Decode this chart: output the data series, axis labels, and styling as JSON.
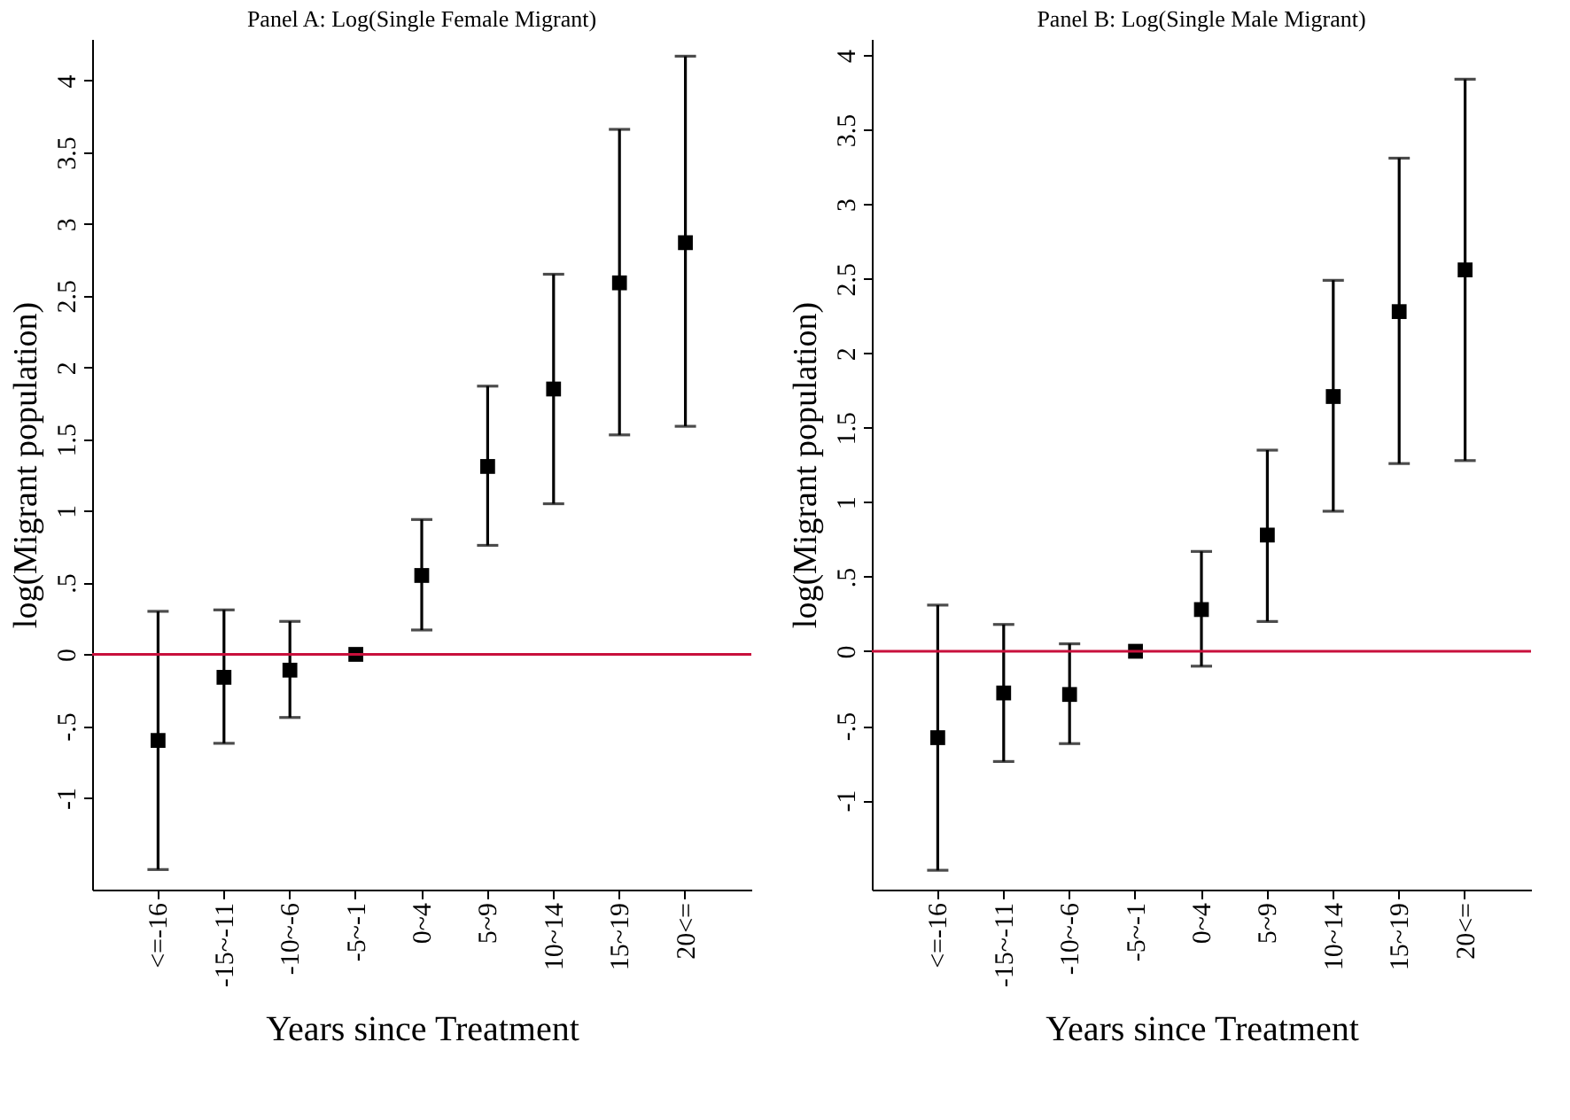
{
  "chart_data": [
    {
      "type": "scatter",
      "title": "Panel A: Log(Single Female Migrant)",
      "xlabel": "Years since Treatment",
      "ylabel": "log(Migrant population)",
      "categories": [
        "<=-16",
        "-15~-11",
        "-10~-6",
        "-5~-1",
        "0~4",
        "5~9",
        "10~14",
        "15~19",
        "20<="
      ],
      "series": [
        {
          "color": "#000000",
          "values": [
            -0.6,
            -0.16,
            -0.11,
            0,
            0.55,
            1.31,
            1.85,
            2.59,
            2.87
          ],
          "errors": [
            [
              -1.5,
              0.3
            ],
            [
              -0.62,
              0.31
            ],
            [
              -0.44,
              0.23
            ],
            null,
            [
              0.17,
              0.94
            ],
            [
              0.76,
              1.87
            ],
            [
              1.05,
              2.65
            ],
            [
              1.53,
              3.66
            ],
            [
              1.59,
              4.17
            ]
          ]
        }
      ],
      "marker": "square",
      "grid": false,
      "ylim": [
        -1.64,
        4.29
      ],
      "yticks": [
        {
          "value": -1,
          "label": "-1"
        },
        {
          "value": -0.5,
          "label": "-.5"
        },
        {
          "value": 0,
          "label": "0"
        },
        {
          "value": 0.5,
          "label": ".5"
        },
        {
          "value": 1,
          "label": "1"
        },
        {
          "value": 1.5,
          "label": "1.5"
        },
        {
          "value": 2,
          "label": "2"
        },
        {
          "value": 2.5,
          "label": "2.5"
        },
        {
          "value": 3,
          "label": "3"
        },
        {
          "value": 3.5,
          "label": "3.5"
        },
        {
          "value": 4,
          "label": "4"
        }
      ],
      "ref_lines": [
        {
          "axis": "y",
          "value": 0,
          "color": "#c8103c"
        }
      ]
    },
    {
      "type": "scatter",
      "title": "Panel B: Log(Single Male Migrant)",
      "xlabel": "Years since Treatment",
      "ylabel": "log(Migrant population)",
      "categories": [
        "<=-16",
        "-15~-11",
        "-10~-6",
        "-5~-1",
        "0~4",
        "5~9",
        "10~14",
        "15~19",
        "20<="
      ],
      "series": [
        {
          "color": "#000000",
          "values": [
            -0.58,
            -0.28,
            -0.29,
            0,
            0.28,
            0.78,
            1.71,
            2.28,
            2.56
          ],
          "errors": [
            [
              -1.47,
              0.31
            ],
            [
              -0.74,
              0.18
            ],
            [
              -0.62,
              0.05
            ],
            null,
            [
              -0.1,
              0.67
            ],
            [
              0.2,
              1.35
            ],
            [
              0.94,
              2.49
            ],
            [
              1.26,
              3.31
            ],
            [
              1.28,
              3.84
            ]
          ]
        }
      ],
      "marker": "square",
      "grid": false,
      "ylim": [
        -1.6,
        4.11
      ],
      "yticks": [
        {
          "value": -1,
          "label": "-1"
        },
        {
          "value": -0.5,
          "label": "-.5"
        },
        {
          "value": 0,
          "label": "0"
        },
        {
          "value": 0.5,
          "label": ".5"
        },
        {
          "value": 1,
          "label": "1"
        },
        {
          "value": 1.5,
          "label": "1.5"
        },
        {
          "value": 2,
          "label": "2"
        },
        {
          "value": 2.5,
          "label": "2.5"
        },
        {
          "value": 3,
          "label": "3"
        },
        {
          "value": 3.5,
          "label": "3.5"
        },
        {
          "value": 4,
          "label": "4"
        }
      ],
      "ref_lines": [
        {
          "axis": "y",
          "value": 0,
          "color": "#c8103c"
        }
      ]
    }
  ]
}
